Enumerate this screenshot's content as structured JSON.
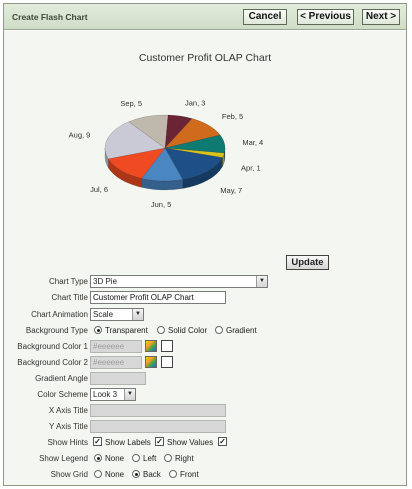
{
  "header": {
    "title": "Create Flash Chart",
    "cancel_label": "Cancel",
    "previous_label": "< Previous",
    "next_label": "Next >"
  },
  "chart_data": {
    "type": "pie",
    "title": "Customer Profit OLAP Chart",
    "categories": [
      "Jan",
      "Feb",
      "Mar",
      "Apr",
      "May",
      "Jun",
      "Jul",
      "Aug",
      "Sep"
    ],
    "values": [
      3,
      5,
      4,
      1,
      7,
      5,
      6,
      9,
      5
    ],
    "labels": [
      "Jan, 3",
      "Feb, 5",
      "Mar, 4",
      "Apr, 1",
      "May, 7",
      "Jun, 5",
      "Jul, 6",
      "Aug, 9",
      "Sep, 5"
    ],
    "colors": [
      "#6b2436",
      "#d06a1c",
      "#0f7a72",
      "#d9c41a",
      "#1e4f86",
      "#4a86c2",
      "#f04a22",
      "#c9cad6",
      "#bfb8ad"
    ]
  },
  "form": {
    "update_label": "Update",
    "chart_type": {
      "label": "Chart Type",
      "value": "3D Pie"
    },
    "chart_title": {
      "label": "Chart Title",
      "value": "Customer Profit OLAP Chart"
    },
    "chart_animation": {
      "label": "Chart Animation",
      "value": "Scale"
    },
    "background_type": {
      "label": "Background Type",
      "options": [
        "Transparent",
        "Solid Color",
        "Gradient"
      ],
      "selected": "Transparent"
    },
    "background_color_1": {
      "label": "Background Color 1",
      "placeholder": "#eeeeee"
    },
    "background_color_2": {
      "label": "Background Color 2",
      "placeholder": "#eeeeee"
    },
    "gradient_angle": {
      "label": "Gradient Angle",
      "value": ""
    },
    "color_scheme": {
      "label": "Color Scheme",
      "value": "Look 3"
    },
    "x_axis_title": {
      "label": "X Axis Title",
      "value": ""
    },
    "y_axis_title": {
      "label": "Y Axis Title",
      "value": ""
    },
    "show_hints": {
      "label": "Show Hints",
      "checked": true
    },
    "show_labels": {
      "label": "Show Labels",
      "checked": true
    },
    "show_values": {
      "label": "Show Values",
      "checked": true
    },
    "show_legend": {
      "label": "Show Legend",
      "options": [
        "None",
        "Left",
        "Right"
      ],
      "selected": "None"
    },
    "show_grid": {
      "label": "Show Grid",
      "options": [
        "None",
        "Back",
        "Front"
      ],
      "selected": "Back"
    }
  }
}
